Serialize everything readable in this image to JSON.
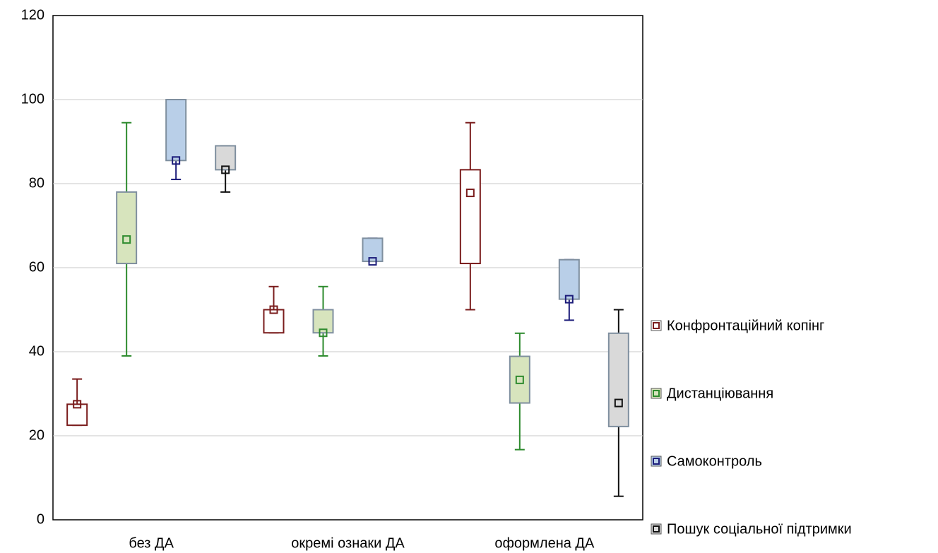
{
  "chart_data": {
    "type": "box",
    "categories": [
      "без ДА",
      "окремі ознаки ДА",
      "оформлена ДА"
    ],
    "ylim": [
      0,
      120
    ],
    "yticks": [
      0,
      20,
      40,
      60,
      80,
      100,
      120
    ],
    "grid": true,
    "legend": "right",
    "series": [
      {
        "name": "Конфронтаційний копінг",
        "color": "#7a1c1c",
        "box_fill": "#ffffff",
        "median": [
          27.5,
          50,
          77.8
        ],
        "q1": [
          22.5,
          44.5,
          61
        ],
        "q3": [
          27.5,
          50,
          83.3
        ],
        "min": [
          22.5,
          44.5,
          50
        ],
        "max": [
          33.5,
          55.5,
          94.5
        ]
      },
      {
        "name": "Дистанціювання",
        "color": "#2e8b2e",
        "box_fill": "#d7e4bd",
        "median": [
          66.7,
          44.5,
          33.3
        ],
        "q1": [
          61,
          44.5,
          27.8
        ],
        "q3": [
          78,
          50,
          38.9
        ],
        "min": [
          39,
          39,
          16.7
        ],
        "max": [
          94.5,
          55.5,
          44.4
        ]
      },
      {
        "name": "Самоконтроль",
        "color": "#1c1c7a",
        "box_fill": "#b9cfe8",
        "median": [
          85.5,
          61.5,
          52.5
        ],
        "q1": [
          85.5,
          61.5,
          52.5
        ],
        "q3": [
          100,
          67,
          61.9
        ],
        "min": [
          81,
          61.5,
          47.5
        ],
        "max": [
          100,
          67,
          61.9
        ]
      },
      {
        "name": "Пошук соціальної підтримки",
        "color": "#111111",
        "box_fill": "#d9d9d9",
        "median": [
          83.3,
          null,
          27.8
        ],
        "q1": [
          83.3,
          null,
          22.2
        ],
        "q3": [
          89,
          null,
          44.4
        ],
        "min": [
          78,
          null,
          5.6
        ],
        "max": [
          89,
          null,
          50
        ]
      }
    ]
  }
}
